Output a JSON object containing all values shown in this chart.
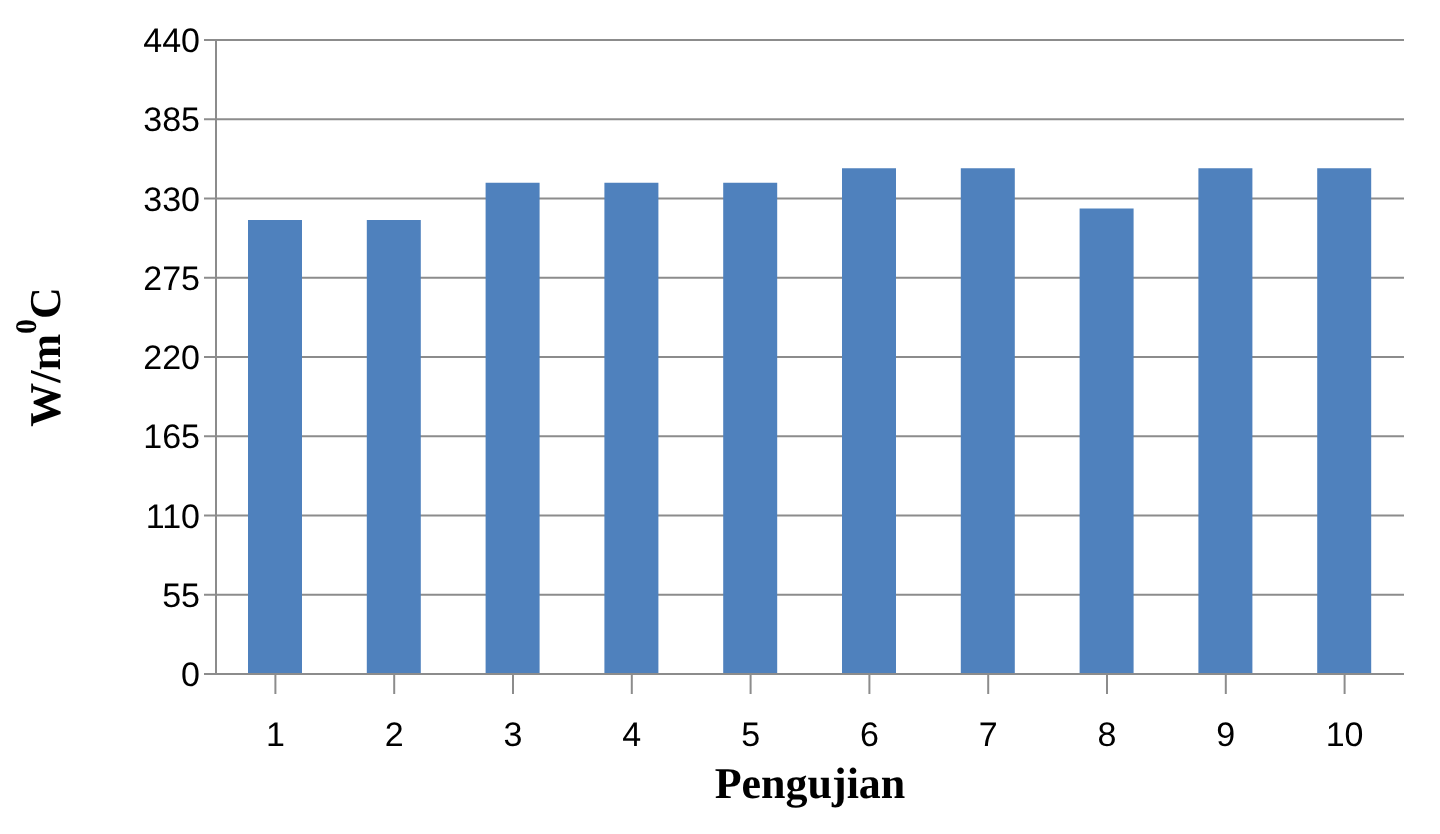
{
  "chart_data": {
    "type": "bar",
    "xlabel": "Pengujian",
    "ylabel": "W/m$^{0}$C",
    "categories": [
      "1",
      "2",
      "3",
      "4",
      "5",
      "6",
      "7",
      "8",
      "9",
      "10"
    ],
    "values": [
      315,
      315,
      341,
      341,
      341,
      351,
      351,
      323,
      351,
      351
    ],
    "color": "#4f81bd",
    "ylim": [
      0,
      440
    ],
    "yticks": [
      0,
      55,
      110,
      165,
      220,
      275,
      330,
      385,
      440
    ],
    "grid": "y"
  }
}
